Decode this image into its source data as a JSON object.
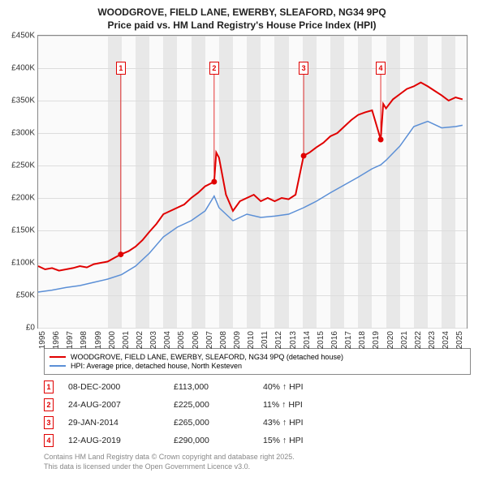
{
  "title_line1": "WOODGROVE, FIELD LANE, EWERBY, SLEAFORD, NG34 9PQ",
  "title_line2": "Price paid vs. HM Land Registry's House Price Index (HPI)",
  "chart": {
    "type": "line",
    "background_color": "#fafafa",
    "grid_color": "#dddddd",
    "border_color": "#888888",
    "x_range": [
      1995,
      2025.8
    ],
    "y_range": [
      0,
      450000
    ],
    "x_ticks": [
      1995,
      1996,
      1997,
      1998,
      1999,
      2000,
      2001,
      2002,
      2003,
      2004,
      2005,
      2006,
      2007,
      2008,
      2009,
      2010,
      2011,
      2012,
      2013,
      2014,
      2015,
      2016,
      2017,
      2018,
      2019,
      2020,
      2021,
      2022,
      2023,
      2024,
      2025
    ],
    "y_ticks": [
      0,
      50000,
      100000,
      150000,
      200000,
      250000,
      300000,
      350000,
      400000,
      450000
    ],
    "y_tick_labels": [
      "£0",
      "£50K",
      "£100K",
      "£150K",
      "£200K",
      "£250K",
      "£300K",
      "£350K",
      "£400K",
      "£450K"
    ],
    "shaded_years": [
      [
        2000,
        2001
      ],
      [
        2002,
        2003
      ],
      [
        2004,
        2005
      ],
      [
        2006,
        2007
      ],
      [
        2008,
        2009
      ],
      [
        2010,
        2011
      ],
      [
        2012,
        2013
      ],
      [
        2014,
        2015
      ],
      [
        2016,
        2017
      ],
      [
        2018,
        2019
      ],
      [
        2020,
        2021
      ],
      [
        2022,
        2023
      ],
      [
        2024,
        2025
      ]
    ],
    "series": [
      {
        "color": "#e00000",
        "width": 2,
        "label": "WOODGROVE, FIELD LANE, EWERBY, SLEAFORD, NG34 9PQ (detached house)",
        "points": [
          [
            1995,
            95000
          ],
          [
            1995.5,
            90000
          ],
          [
            1996,
            92000
          ],
          [
            1996.5,
            88000
          ],
          [
            1997,
            90000
          ],
          [
            1997.5,
            92000
          ],
          [
            1998,
            95000
          ],
          [
            1998.5,
            93000
          ],
          [
            1999,
            98000
          ],
          [
            1999.5,
            100000
          ],
          [
            2000,
            102000
          ],
          [
            2000.5,
            108000
          ],
          [
            2000.94,
            113000
          ],
          [
            2001.5,
            118000
          ],
          [
            2002,
            125000
          ],
          [
            2002.5,
            135000
          ],
          [
            2003,
            148000
          ],
          [
            2003.5,
            160000
          ],
          [
            2004,
            175000
          ],
          [
            2004.5,
            180000
          ],
          [
            2005,
            185000
          ],
          [
            2005.5,
            190000
          ],
          [
            2006,
            200000
          ],
          [
            2006.5,
            208000
          ],
          [
            2007,
            218000
          ],
          [
            2007.65,
            225000
          ],
          [
            2007.8,
            270000
          ],
          [
            2008,
            262000
          ],
          [
            2008.5,
            205000
          ],
          [
            2009,
            180000
          ],
          [
            2009.5,
            195000
          ],
          [
            2010,
            200000
          ],
          [
            2010.5,
            205000
          ],
          [
            2011,
            195000
          ],
          [
            2011.5,
            200000
          ],
          [
            2012,
            195000
          ],
          [
            2012.5,
            200000
          ],
          [
            2013,
            198000
          ],
          [
            2013.5,
            205000
          ],
          [
            2014.08,
            265000
          ],
          [
            2014.5,
            270000
          ],
          [
            2015,
            278000
          ],
          [
            2015.5,
            285000
          ],
          [
            2016,
            295000
          ],
          [
            2016.5,
            300000
          ],
          [
            2017,
            310000
          ],
          [
            2017.5,
            320000
          ],
          [
            2018,
            328000
          ],
          [
            2018.5,
            332000
          ],
          [
            2019,
            335000
          ],
          [
            2019.62,
            290000
          ],
          [
            2019.8,
            345000
          ],
          [
            2020,
            338000
          ],
          [
            2020.5,
            352000
          ],
          [
            2021,
            360000
          ],
          [
            2021.5,
            368000
          ],
          [
            2022,
            372000
          ],
          [
            2022.5,
            378000
          ],
          [
            2023,
            372000
          ],
          [
            2023.5,
            365000
          ],
          [
            2024,
            358000
          ],
          [
            2024.5,
            350000
          ],
          [
            2025,
            355000
          ],
          [
            2025.5,
            352000
          ]
        ]
      },
      {
        "color": "#5b8fd6",
        "width": 1.5,
        "label": "HPI: Average price, detached house, North Kesteven",
        "points": [
          [
            1995,
            55000
          ],
          [
            1996,
            58000
          ],
          [
            1997,
            62000
          ],
          [
            1998,
            65000
          ],
          [
            1999,
            70000
          ],
          [
            2000,
            75000
          ],
          [
            2001,
            82000
          ],
          [
            2002,
            95000
          ],
          [
            2003,
            115000
          ],
          [
            2004,
            140000
          ],
          [
            2005,
            155000
          ],
          [
            2006,
            165000
          ],
          [
            2007,
            180000
          ],
          [
            2007.65,
            203000
          ],
          [
            2008,
            185000
          ],
          [
            2009,
            165000
          ],
          [
            2010,
            175000
          ],
          [
            2011,
            170000
          ],
          [
            2012,
            172000
          ],
          [
            2013,
            175000
          ],
          [
            2014.08,
            185000
          ],
          [
            2015,
            195000
          ],
          [
            2016,
            208000
          ],
          [
            2017,
            220000
          ],
          [
            2018,
            232000
          ],
          [
            2019,
            245000
          ],
          [
            2019.62,
            251000
          ],
          [
            2020,
            258000
          ],
          [
            2021,
            280000
          ],
          [
            2022,
            310000
          ],
          [
            2023,
            318000
          ],
          [
            2024,
            308000
          ],
          [
            2025,
            310000
          ],
          [
            2025.5,
            312000
          ]
        ]
      }
    ],
    "sale_markers": [
      {
        "n": "1",
        "x": 2000.94,
        "y": 113000,
        "box_y": 400000
      },
      {
        "n": "2",
        "x": 2007.65,
        "y": 225000,
        "box_y": 400000
      },
      {
        "n": "3",
        "x": 2014.08,
        "y": 265000,
        "box_y": 400000
      },
      {
        "n": "4",
        "x": 2019.62,
        "y": 290000,
        "box_y": 400000
      }
    ]
  },
  "legend": {
    "items": [
      {
        "color": "#e00000",
        "label": "WOODGROVE, FIELD LANE, EWERBY, SLEAFORD, NG34 9PQ (detached house)"
      },
      {
        "color": "#5b8fd6",
        "label": "HPI: Average price, detached house, North Kesteven"
      }
    ]
  },
  "sales": [
    {
      "n": "1",
      "date": "08-DEC-2000",
      "price": "£113,000",
      "diff": "40% ↑ HPI"
    },
    {
      "n": "2",
      "date": "24-AUG-2007",
      "price": "£225,000",
      "diff": "11% ↑ HPI"
    },
    {
      "n": "3",
      "date": "29-JAN-2014",
      "price": "£265,000",
      "diff": "43% ↑ HPI"
    },
    {
      "n": "4",
      "date": "12-AUG-2019",
      "price": "£290,000",
      "diff": "15% ↑ HPI"
    }
  ],
  "footer_line1": "Contains HM Land Registry data © Crown copyright and database right 2025.",
  "footer_line2": "This data is licensed under the Open Government Licence v3.0."
}
